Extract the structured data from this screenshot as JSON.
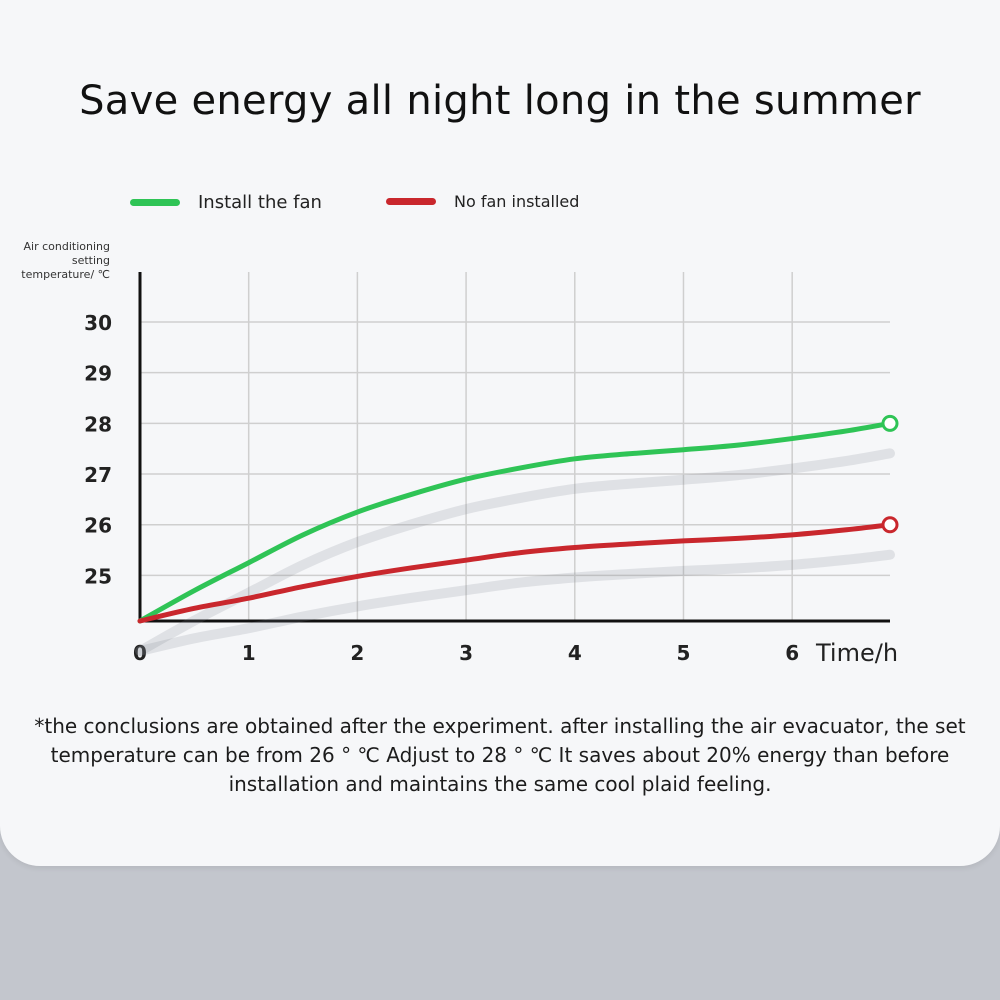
{
  "chart_data": {
    "type": "line",
    "title": "Save energy all night long in the summer",
    "ylabel": "Air conditioning setting temperature/ ℃",
    "xlabel": "Time/h",
    "x_ticks": [
      "0",
      "1",
      "2",
      "3",
      "4",
      "5",
      "6"
    ],
    "y_ticks": [
      "30",
      "29",
      "28",
      "27",
      "26",
      "25"
    ],
    "xlim": [
      0,
      6.9
    ],
    "ylim": [
      24.1,
      30
    ],
    "grid": true,
    "legend_position": "top",
    "series": [
      {
        "name": "Install the fan",
        "color": "#2fc456",
        "x": [
          0,
          0.5,
          1,
          1.5,
          2,
          2.5,
          3,
          3.5,
          4,
          4.5,
          5,
          5.5,
          6,
          6.5,
          6.9
        ],
        "y": [
          24.1,
          24.7,
          25.25,
          25.8,
          26.25,
          26.6,
          26.9,
          27.12,
          27.3,
          27.4,
          27.48,
          27.57,
          27.7,
          27.85,
          28.0
        ]
      },
      {
        "name": "No fan installed",
        "color": "#c9272d",
        "x": [
          0,
          0.5,
          1,
          1.5,
          2,
          2.5,
          3,
          3.5,
          4,
          4.5,
          5,
          5.5,
          6,
          6.5,
          6.9
        ],
        "y": [
          24.1,
          24.35,
          24.55,
          24.78,
          24.98,
          25.15,
          25.3,
          25.45,
          25.55,
          25.62,
          25.68,
          25.73,
          25.8,
          25.9,
          26.0
        ]
      }
    ]
  },
  "footnote": "*the conclusions are obtained after the experiment. after installing the air evacuator, the set temperature can be from 26 ° ℃ Adjust to 28 ° ℃   It saves about 20% energy than before installation and maintains the same cool plaid feeling."
}
